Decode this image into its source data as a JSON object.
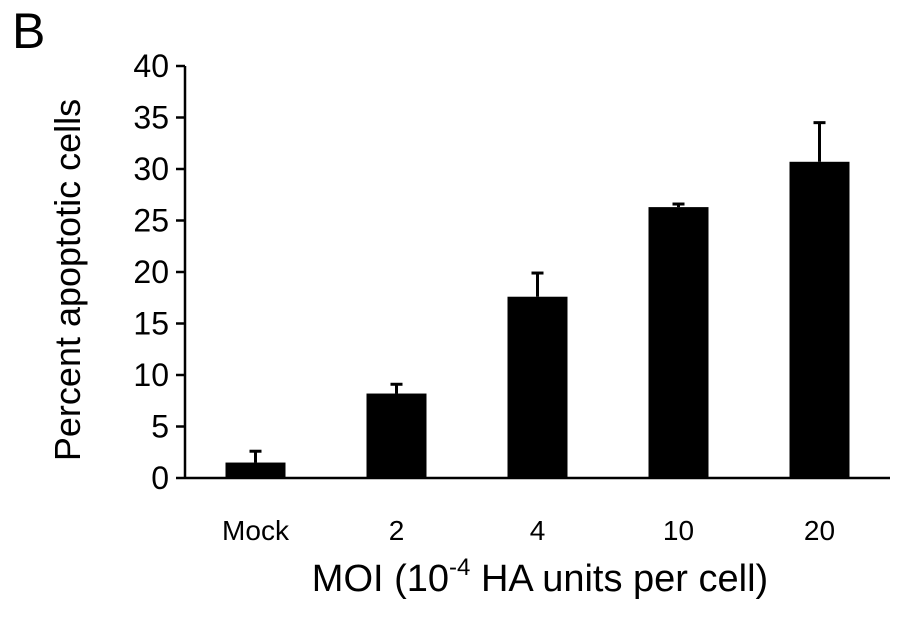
{
  "panel_label": "B",
  "chart_data": {
    "type": "bar",
    "categories": [
      "Mock",
      "2",
      "4",
      "10",
      "20"
    ],
    "values": [
      1.5,
      8.2,
      17.6,
      26.3,
      30.7
    ],
    "errors": [
      1.1,
      0.9,
      2.3,
      0.3,
      3.8
    ],
    "title": "",
    "xlabel_prefix": "MOI (10",
    "xlabel_sup": "-4",
    "xlabel_suffix": " HA units per cell)",
    "ylabel": "Percent apoptotic cells",
    "ylim": [
      0,
      40
    ],
    "yticks": [
      0,
      5,
      10,
      15,
      20,
      25,
      30,
      35,
      40
    ],
    "grid": false,
    "bar_color": "#000000"
  }
}
